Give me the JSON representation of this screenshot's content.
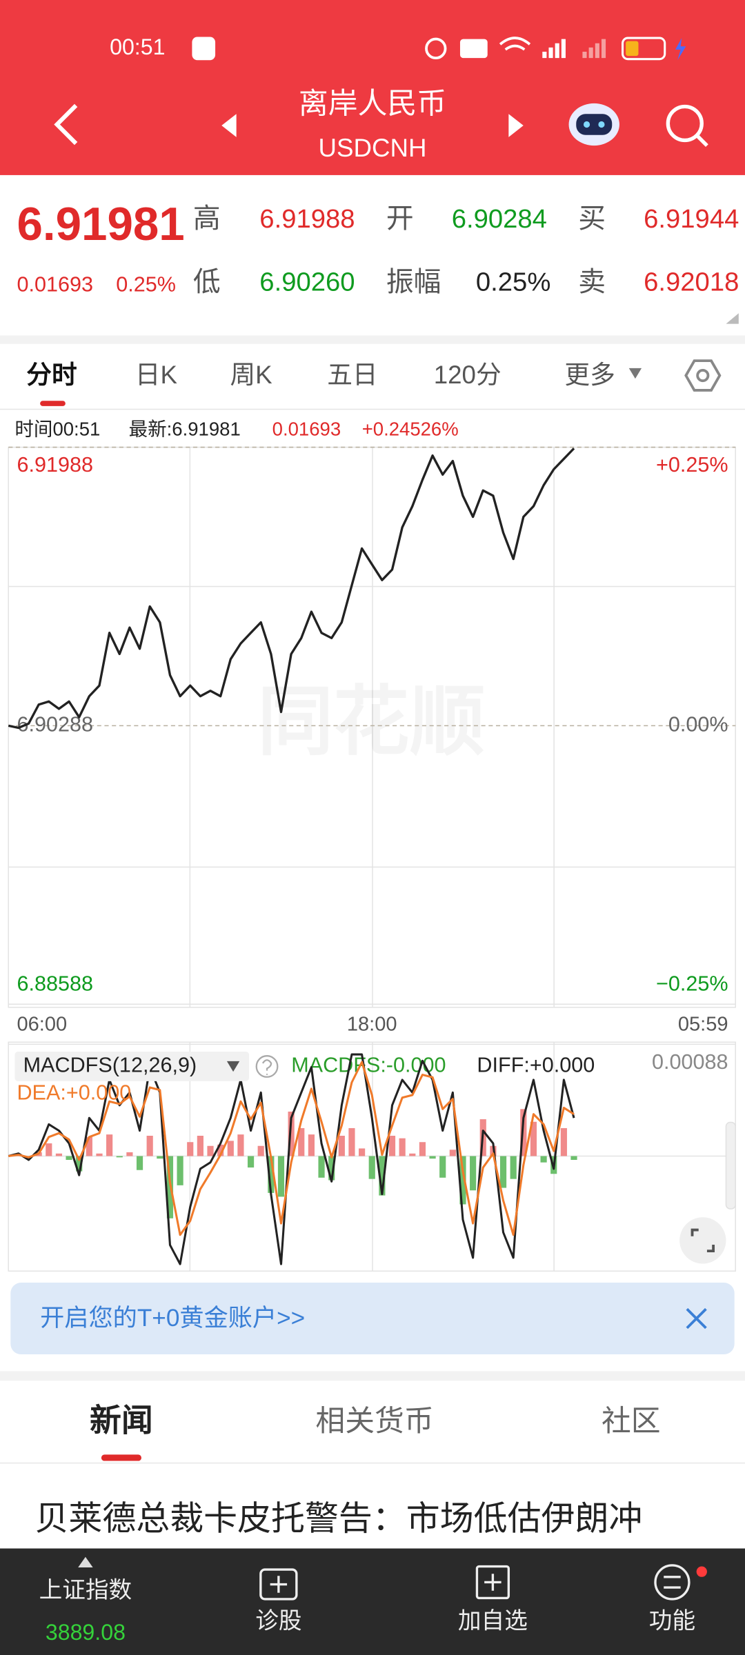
{
  "status_bar": {
    "time": "00:51"
  },
  "header": {
    "title": "离岸人民币",
    "subtitle": "USDCNH"
  },
  "quote": {
    "price": "6.91981",
    "change": "0.01693",
    "change_pct": "0.25%",
    "high_label": "高",
    "high": "6.91988",
    "open_label": "开",
    "open": "6.90284",
    "buy_label": "买",
    "buy": "6.91944",
    "low_label": "低",
    "low": "6.90260",
    "amplitude_label": "振幅",
    "amplitude": "0.25%",
    "sell_label": "卖",
    "sell": "6.92018"
  },
  "tabs": [
    "分时",
    "日K",
    "周K",
    "五日",
    "120分",
    "更多"
  ],
  "info_bar": {
    "time": "时间00:51",
    "latest": "最新:6.91981",
    "change": "0.01693",
    "change_pct": "+0.24526%"
  },
  "chart_data": [
    {
      "type": "line",
      "color": "#222222",
      "grid": true,
      "categories": [
        "06:00",
        null,
        null,
        null,
        null,
        null,
        null,
        null,
        null,
        null,
        null,
        null,
        null,
        null,
        null,
        null,
        null,
        null,
        null,
        null,
        null,
        null,
        null,
        null,
        null,
        null,
        null,
        null,
        null,
        null,
        null,
        null,
        null,
        null,
        null,
        null,
        "18:00",
        null,
        null,
        null,
        null,
        null,
        null,
        null,
        null,
        null,
        null,
        null,
        null,
        null,
        null,
        null,
        null,
        null,
        null,
        null,
        null,
        null,
        null,
        null,
        null,
        null,
        null,
        null,
        null,
        null,
        null,
        null,
        null,
        null,
        null,
        null,
        "05:59"
      ],
      "values": [
        6.90288,
        6.90275,
        6.90301,
        6.90417,
        6.90436,
        6.90391,
        6.90436,
        6.9034,
        6.90468,
        6.90533,
        6.90855,
        6.90726,
        6.90887,
        6.90758,
        6.91016,
        6.90919,
        6.90597,
        6.90468,
        6.90533,
        6.90468,
        6.90501,
        6.90468,
        6.90694,
        6.9079,
        6.90855,
        6.90919,
        6.90726,
        6.90372,
        6.90726,
        6.90823,
        6.90984,
        6.90855,
        6.90823,
        6.90919,
        6.91145,
        6.9137,
        6.91273,
        6.91177,
        6.91241,
        6.91499,
        6.91628,
        6.91789,
        6.91937,
        6.91821,
        6.91904,
        6.91692,
        6.91563,
        6.91724,
        6.91692,
        6.91467,
        6.91306,
        6.91563,
        6.91628,
        6.91756,
        6.91853,
        6.91917,
        6.91981,
        null,
        null,
        null,
        null,
        null,
        null,
        null,
        null,
        null,
        null,
        null,
        null,
        null,
        null,
        null,
        null
      ],
      "ylim": [
        6.88588,
        6.91988
      ],
      "yticks": [
        6.91988,
        6.90288,
        6.88588
      ],
      "y2lim": [
        -0.25,
        0.25
      ],
      "y2ticks": [
        {
          "value": 0.25,
          "label": "+0.25%"
        },
        {
          "value": 0,
          "label": "0.00%"
        },
        {
          "value": -0.25,
          "label": "−0.25%"
        }
      ]
    },
    {
      "type": "macd",
      "title": "MACDFS(12,26,9)",
      "ylim": [
        -0.00088,
        0.00088
      ],
      "yticks": [
        0.00088
      ],
      "series": [
        {
          "name": "MACDFS:-0.000",
          "style": "bar",
          "color": "#f08a8a",
          "negative_color": "#6dbf6d",
          "values": [
            0,
            1e-05,
            -2e-05,
            3e-05,
            0.0001,
            2e-05,
            -3e-05,
            -0.00012,
            0.00015,
            2e-05,
            0.00017,
            -1e-05,
            3e-05,
            -0.00011,
            0.00016,
            -2e-05,
            -0.00049,
            -0.00023,
            0.00011,
            0.00016,
            8e-05,
            9e-05,
            0.00012,
            0.00017,
            -9e-05,
            8e-05,
            -0.00029,
            -0.00032,
            0.00035,
            0.00022,
            0.00017,
            -0.00017,
            -0.00019,
            0.00016,
            0.00022,
            6e-05,
            -0.00018,
            -0.00031,
            0.00016,
            0.00014,
            2e-05,
            0.00011,
            -2e-05,
            -0.00017,
            5e-05,
            -0.00038,
            -0.00027,
            0.00029,
            8e-05,
            -0.00025,
            -0.00018,
            0.00037,
            0.00027,
            -5e-05,
            -0.00014,
            0.00022,
            -3e-05
          ]
        },
        {
          "name": "DIFF:+0.000",
          "style": "line",
          "color": "#222222",
          "values": [
            0,
            2e-05,
            -3e-05,
            5e-05,
            0.00025,
            0.0002,
            0.0001,
            -0.00015,
            0.0003,
            0.0002,
            0.0006,
            0.0004,
            0.0005,
            0.0002,
            0.0007,
            0.0005,
            -0.0007,
            -0.00085,
            -0.0004,
            -0.0001,
            -5e-05,
            0.0001,
            0.0003,
            0.0006,
            0.0002,
            0.0005,
            -0.0003,
            -0.00085,
            0.0003,
            0.0005,
            0.0007,
            0.0001,
            -0.0002,
            0.0004,
            0.0008,
            0.0008,
            0.0003,
            -0.0003,
            0.0004,
            0.0006,
            0.0005,
            0.00075,
            0.0006,
            0.0002,
            0.0005,
            -0.0005,
            -0.0008,
            0.0002,
            0.0001,
            -0.0006,
            -0.0008,
            0.0003,
            0.0006,
            0.0002,
            -0.0001,
            0.0006,
            0.0003
          ]
        },
        {
          "name": "DEA:+0.000",
          "style": "line",
          "color": "#f07a2a",
          "values": [
            0,
            1e-05,
            -1e-05,
            2e-05,
            0.00015,
            0.00018,
            0.00013,
            -3e-05,
            0.00015,
            0.00018,
            0.00043,
            0.00041,
            0.00047,
            0.00031,
            0.00054,
            0.00052,
            -0.00021,
            -0.00062,
            -0.00051,
            -0.00026,
            -0.00013,
            1e-05,
            0.00018,
            0.00043,
            0.00029,
            0.00042,
            -1e-05,
            -0.00053,
            -5e-05,
            0.00028,
            0.00053,
            0.00027,
            -1e-05,
            0.00024,
            0.00058,
            0.00074,
            0.00048,
            1e-05,
            0.00024,
            0.00046,
            0.00048,
            0.00064,
            0.00062,
            0.00037,
            0.00045,
            -0.00012,
            -0.00053,
            -9e-05,
            2e-05,
            -0.00035,
            -0.00062,
            -7e-05,
            0.00033,
            0.00025,
            4e-05,
            0.00038,
            0.00033
          ]
        }
      ]
    }
  ],
  "watermark": "同花顺",
  "banner": {
    "text": "开启您的T+0黄金账户>>"
  },
  "section_tabs": [
    "新闻",
    "相关货币",
    "社区"
  ],
  "news": [
    "贝莱德总裁卡皮托警告：市场低估伊朗冲"
  ],
  "bottom_nav": {
    "index_name": "上证指数",
    "index_value": "3889.08",
    "items": [
      "诊股",
      "加自选",
      "功能"
    ]
  }
}
